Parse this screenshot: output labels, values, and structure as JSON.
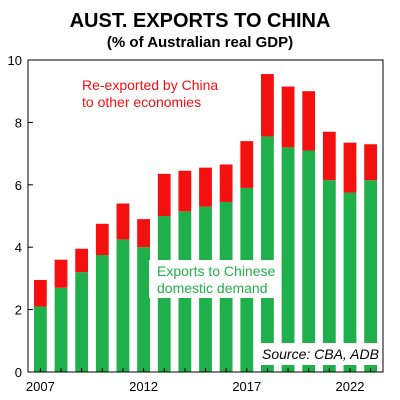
{
  "chart_data": {
    "type": "bar",
    "stacked": true,
    "title": "AUST. EXPORTS TO CHINA",
    "subtitle": "(% of Australian real GDP)",
    "x": [
      2007,
      2008,
      2009,
      2010,
      2011,
      2012,
      2013,
      2014,
      2015,
      2016,
      2017,
      2018,
      2019,
      2020,
      2021,
      2022,
      2023
    ],
    "x_tick_labels": [
      "2007",
      "2012",
      "2017",
      "2022"
    ],
    "ylim": [
      0,
      10
    ],
    "y_tick_labels": [
      "0",
      "2",
      "4",
      "6",
      "8",
      "10"
    ],
    "grid": false,
    "series": [
      {
        "name": "Exports to Chinese domestic demand",
        "color": "#20B04B",
        "values": [
          2.1,
          2.7,
          3.2,
          3.75,
          4.25,
          4.0,
          5.0,
          5.15,
          5.3,
          5.45,
          5.9,
          7.55,
          7.2,
          7.1,
          6.15,
          5.75,
          6.15
        ]
      },
      {
        "name": "Re-exported by China to other economies",
        "color": "#F51010",
        "values": [
          0.85,
          0.9,
          0.75,
          1.0,
          1.15,
          0.9,
          1.35,
          1.3,
          1.25,
          1.2,
          1.5,
          2.0,
          1.95,
          1.9,
          1.55,
          1.6,
          1.15
        ]
      }
    ],
    "annotations": {
      "red_label_lines": [
        "Re-exported by China",
        "to other economies"
      ],
      "green_label_lines": [
        "Exports to Chinese",
        "domestic demand"
      ],
      "source": "Source: CBA, ADB"
    }
  }
}
